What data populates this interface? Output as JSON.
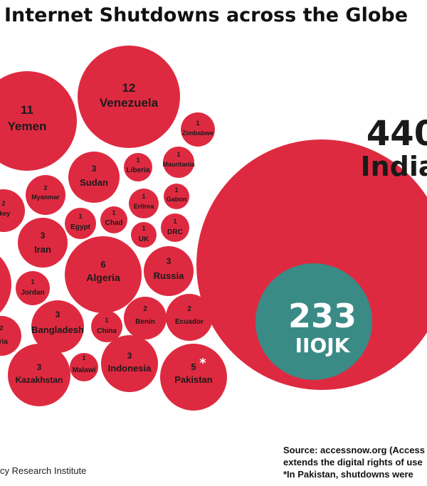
{
  "title": "Internet Shutdowns across the Globe",
  "colors": {
    "bubble": "#de2a40",
    "inner": "#3a8a86",
    "text": "#1a1a1a"
  },
  "chart_data": {
    "type": "bubble",
    "title": "Internet Shutdowns across the Globe",
    "series": [
      {
        "name": "India",
        "value": 440,
        "label": "India",
        "value_label": "440"
      },
      {
        "name": "IIOJK",
        "value": 233,
        "label": "IIOJK",
        "value_label": "233"
      },
      {
        "name": "Venezuela",
        "value": 12,
        "label": "Venezuela",
        "value_label": "12"
      },
      {
        "name": "Yemen",
        "value": 11,
        "label": "Yemen",
        "value_label": "11"
      },
      {
        "name": "Zimbabwe",
        "value": 1,
        "label": "Zimbabwe",
        "value_label": "1"
      },
      {
        "name": "Mauritania",
        "value": 1,
        "label": "Mauritania",
        "value_label": "1"
      },
      {
        "name": "Liberia",
        "value": 1,
        "label": "Liberia",
        "value_label": "1"
      },
      {
        "name": "Sudan",
        "value": 3,
        "label": "Sudan",
        "value_label": "3"
      },
      {
        "name": "Myanmar",
        "value": 2,
        "label": "Myanmar",
        "value_label": "2"
      },
      {
        "name": "Turkey",
        "value": 2,
        "label": "rkey",
        "value_label": "2"
      },
      {
        "name": "Eritrea",
        "value": 1,
        "label": "Eritrea",
        "value_label": "1"
      },
      {
        "name": "Gabon",
        "value": 1,
        "label": "Gabon",
        "value_label": "1"
      },
      {
        "name": "Egypt",
        "value": 1,
        "label": "Egypt",
        "value_label": "1"
      },
      {
        "name": "Chad",
        "value": 1,
        "label": "Chad",
        "value_label": "1"
      },
      {
        "name": "UK",
        "value": 1,
        "label": "UK",
        "value_label": "1"
      },
      {
        "name": "DRC",
        "value": 1,
        "label": "DRC",
        "value_label": "1"
      },
      {
        "name": "Iran",
        "value": 3,
        "label": "Iran",
        "value_label": "3"
      },
      {
        "name": "Algeria",
        "value": 6,
        "label": "Algeria",
        "value_label": "6"
      },
      {
        "name": "Russia",
        "value": 3,
        "label": "Russia",
        "value_label": "3"
      },
      {
        "name": "Jordan",
        "value": 1,
        "label": "Jordan",
        "value_label": "1"
      },
      {
        "name": "Bangladesh",
        "value": 3,
        "label": "Bangladesh",
        "value_label": "3"
      },
      {
        "name": "China",
        "value": 1,
        "label": "China",
        "value_label": "1"
      },
      {
        "name": "Benin",
        "value": 2,
        "label": "Benin",
        "value_label": "2"
      },
      {
        "name": "Ecuador",
        "value": 2,
        "label": "Ecuador",
        "value_label": "2"
      },
      {
        "name": "Syria",
        "value": 2,
        "label": "yria",
        "value_label": "2"
      },
      {
        "name": "Kazakhstan",
        "value": 3,
        "label": "Kazakhstan",
        "value_label": "3"
      },
      {
        "name": "Malawi",
        "value": 1,
        "label": "Malawi",
        "value_label": "1"
      },
      {
        "name": "Indonesia",
        "value": 3,
        "label": "Indonesia",
        "value_label": "3"
      },
      {
        "name": "Pakistan",
        "value": 5,
        "label": "Pakistan",
        "value_label": "5",
        "mark": "*"
      },
      {
        "name": "cut-off-left-1",
        "value": null,
        "label": "",
        "value_label": ""
      },
      {
        "name": "cut-off-left-2",
        "value": null,
        "label": "",
        "value_label": ""
      }
    ]
  },
  "footer": {
    "source_line1": "Source: accessnow.org (Access",
    "source_line2": "extends the digital rights of use",
    "note": "*In Pakistan, shutdowns were",
    "org": "cy Research Institute"
  }
}
